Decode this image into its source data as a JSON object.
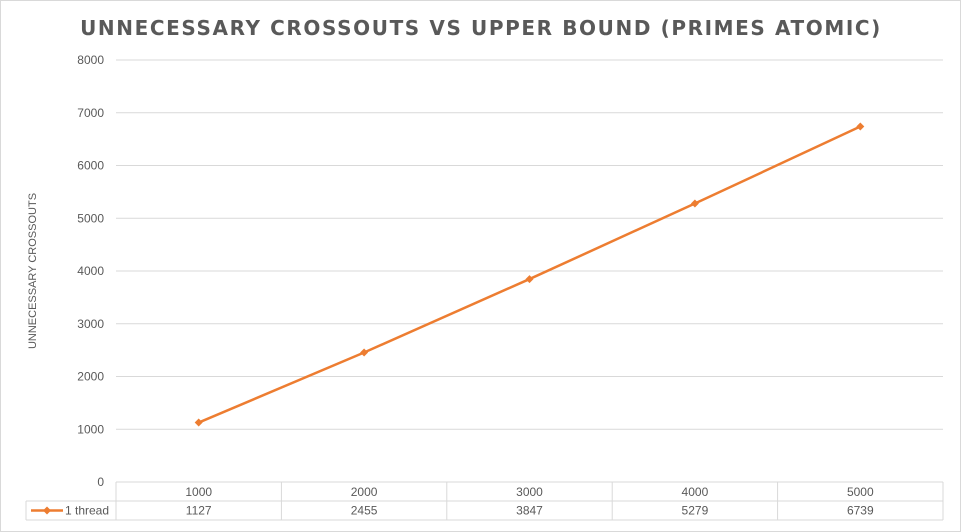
{
  "chart_data": {
    "type": "line",
    "title": "UNNECESSARY CROSSOUTS VS UPPER BOUND (PRIMES ATOMIC)",
    "xlabel": "",
    "ylabel": "UNNECESSARY CROSSOUTS",
    "categories": [
      "1000",
      "2000",
      "3000",
      "4000",
      "5000"
    ],
    "series": [
      {
        "name": "1 thread",
        "values": [
          1127,
          2455,
          3847,
          5279,
          6739
        ],
        "color": "#ED7D31",
        "marker": "diamond"
      }
    ],
    "ylim": [
      0,
      8000
    ],
    "yticks": [
      "0",
      "1000",
      "2000",
      "3000",
      "4000",
      "5000",
      "6000",
      "7000",
      "8000"
    ],
    "grid": true,
    "legend": "data table",
    "data_table": {
      "rows": [
        {
          "series": "1 thread",
          "cells": [
            "1127",
            "2455",
            "3847",
            "5279",
            "6739"
          ]
        }
      ]
    }
  }
}
